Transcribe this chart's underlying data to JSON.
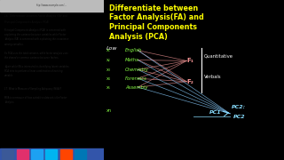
{
  "title_lines": [
    "Differentiate between",
    "Factor Analysis(FA) and",
    "Principal Components",
    "Analysis (PCA)"
  ],
  "title_color": "#ffff00",
  "bg_right": "#111111",
  "bg_left": "#d8d8d8",
  "variables": [
    "English",
    "Maths",
    "Chemistry",
    "Forensics",
    "Assembly"
  ],
  "var_xn": "xn",
  "variables_color": "#88ff44",
  "factors": [
    "F₁",
    "F₂"
  ],
  "factors_color": "#ff9999",
  "right_labels": [
    "Quantitative",
    "Verbals"
  ],
  "right_labels_color": "#ffffff",
  "pc1_label": "PC1",
  "pc2_label": "PC2:",
  "pc2b_label": "PC2",
  "pca_color": "#88ddff",
  "line_color_fa": "#dd8888",
  "line_color_pca": "#88ccff",
  "low_label": "Low",
  "low_color": "#ffffff",
  "left_article_title": "16. Differentiate between Factor Analysis (FA) and\nPrincipal Components Analysis (PCA)",
  "left_article_body": "Principal Components Analysis (PCA) is concerned with\nexplaining the variance between variables while Factor\nAnalysis (FA) is concerned with explaining the covariance\namong variables.\n\nSo PCA uses the total variance, while factor analysis uses\nthe shared or common variance between factors.\n\nAgain while FA is interested in identifying latent variables,\nPCA tries to perform a linear combination of existing\nvariable.\n\n\n17. What is Measure of Sampling Adequacy (MSA)?\n\nMSA is a measure of how suitable a data set is for Factor\nAnalysis.",
  "left_bg": "#e8e8e8",
  "separator_color": "#666699",
  "vline_color": "#ffffff",
  "xvar_labels": [
    "x₁",
    "x₂",
    "x₃",
    "x₄",
    "x₅"
  ],
  "xvar_color": "#88ff44"
}
